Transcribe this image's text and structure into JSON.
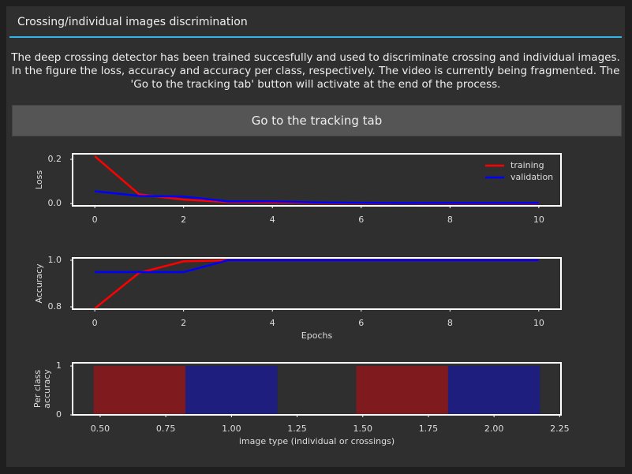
{
  "dialog": {
    "title": "Crossing/individual images discrimination",
    "message": "The deep crossing detector has been trained succesfully and used to discriminate crossing and individual images. In the figure the loss, accuracy and accuracy per class, respectively. The video is currently being fragmented. The 'Go to the tracking tab' button will activate at the end of the process.",
    "button": "Go to the tracking tab"
  },
  "chart_data": [
    {
      "type": "line",
      "ylabel": "Loss",
      "x": [
        0,
        1,
        2,
        3,
        4,
        5,
        6,
        7,
        8,
        9,
        10
      ],
      "series": [
        {
          "name": "training",
          "color": "#ff0000",
          "values": [
            0.214,
            0.042,
            0.018,
            0.007,
            0.005,
            0.003,
            0.002,
            0.002,
            0.001,
            0.001,
            0.001
          ]
        },
        {
          "name": "validation",
          "color": "#0000ff",
          "values": [
            0.056,
            0.035,
            0.032,
            0.01,
            0.01,
            0.005,
            0.004,
            0.003,
            0.003,
            0.003,
            0.003
          ]
        }
      ],
      "xlim": [
        -0.5,
        10.5
      ],
      "xticks": [
        0,
        2,
        4,
        6,
        8,
        10
      ],
      "ylim": [
        -0.01,
        0.225
      ],
      "yticks": [
        {
          "value": 0,
          "label": "0.0"
        },
        0.2
      ],
      "legend": "upper-right"
    },
    {
      "type": "line",
      "ylabel": "Accuracy",
      "xlabel": "Epochs",
      "x": [
        0,
        1,
        2,
        3,
        4,
        5,
        6,
        7,
        8,
        9,
        10
      ],
      "series": [
        {
          "name": "training",
          "color": "#ff0000",
          "values": [
            0.793,
            0.946,
            0.995,
            1,
            1,
            1,
            1,
            1,
            1,
            1,
            1
          ]
        },
        {
          "name": "validation",
          "color": "#0000ff",
          "values": [
            0.949,
            0.949,
            0.949,
            1,
            1,
            1,
            1,
            1,
            1,
            1,
            1
          ]
        }
      ],
      "xlim": [
        -0.5,
        10.5
      ],
      "xticks": [
        0,
        2,
        4,
        6,
        8,
        10
      ],
      "ylim": [
        0.79,
        1.01
      ],
      "yticks": [
        {
          "value": 0.8,
          "label": "0.8"
        },
        {
          "value": 1,
          "label": "1.0"
        }
      ]
    },
    {
      "type": "bar",
      "ylabel": [
        "Per class",
        "accuracy"
      ],
      "xlabel": "image type (individual or crossings)",
      "bar_width": 0.35,
      "series": [
        {
          "color": "#7f1b1e",
          "x": [
            0.65,
            1.65
          ],
          "values": [
            1,
            1
          ]
        },
        {
          "color": "#1e1e7e",
          "x": [
            1.0,
            2.0
          ],
          "values": [
            1,
            1
          ]
        }
      ],
      "xlim": [
        0.395,
        2.255
      ],
      "xticks": [
        {
          "value": 0.5,
          "label": "0.50"
        },
        {
          "value": 0.75,
          "label": "0.75"
        },
        {
          "value": 1,
          "label": "1.00"
        },
        {
          "value": 1.25,
          "label": "1.25"
        },
        {
          "value": 1.5,
          "label": "1.50"
        },
        {
          "value": 1.75,
          "label": "1.75"
        },
        {
          "value": 2,
          "label": "2.00"
        },
        {
          "value": 2.25,
          "label": "2.25"
        }
      ],
      "ylim": [
        0,
        1.065
      ],
      "yticks": [
        0,
        1
      ]
    }
  ]
}
